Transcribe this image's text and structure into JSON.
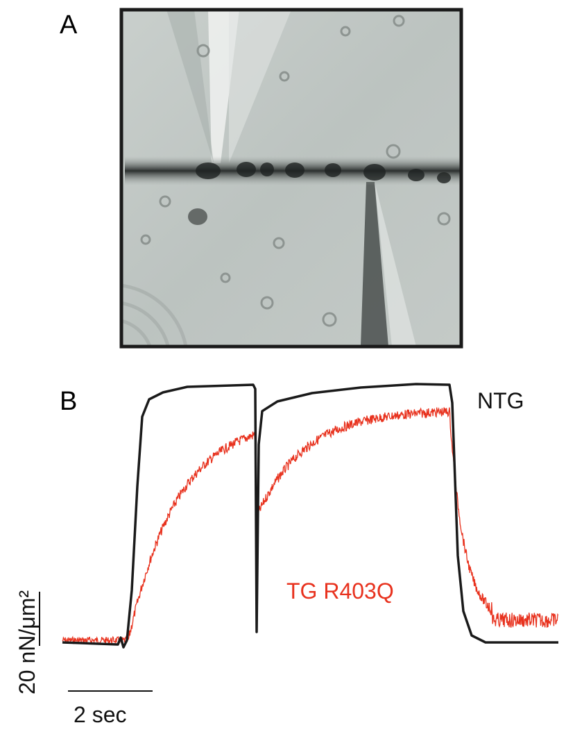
{
  "panels": [
    {
      "label": "A"
    },
    {
      "label": "B",
      "traces": [
        "NTG",
        "TG R403Q"
      ],
      "scale_bar_y": "20 nN/μm²",
      "scale_bar_x": "2 sec"
    }
  ]
}
